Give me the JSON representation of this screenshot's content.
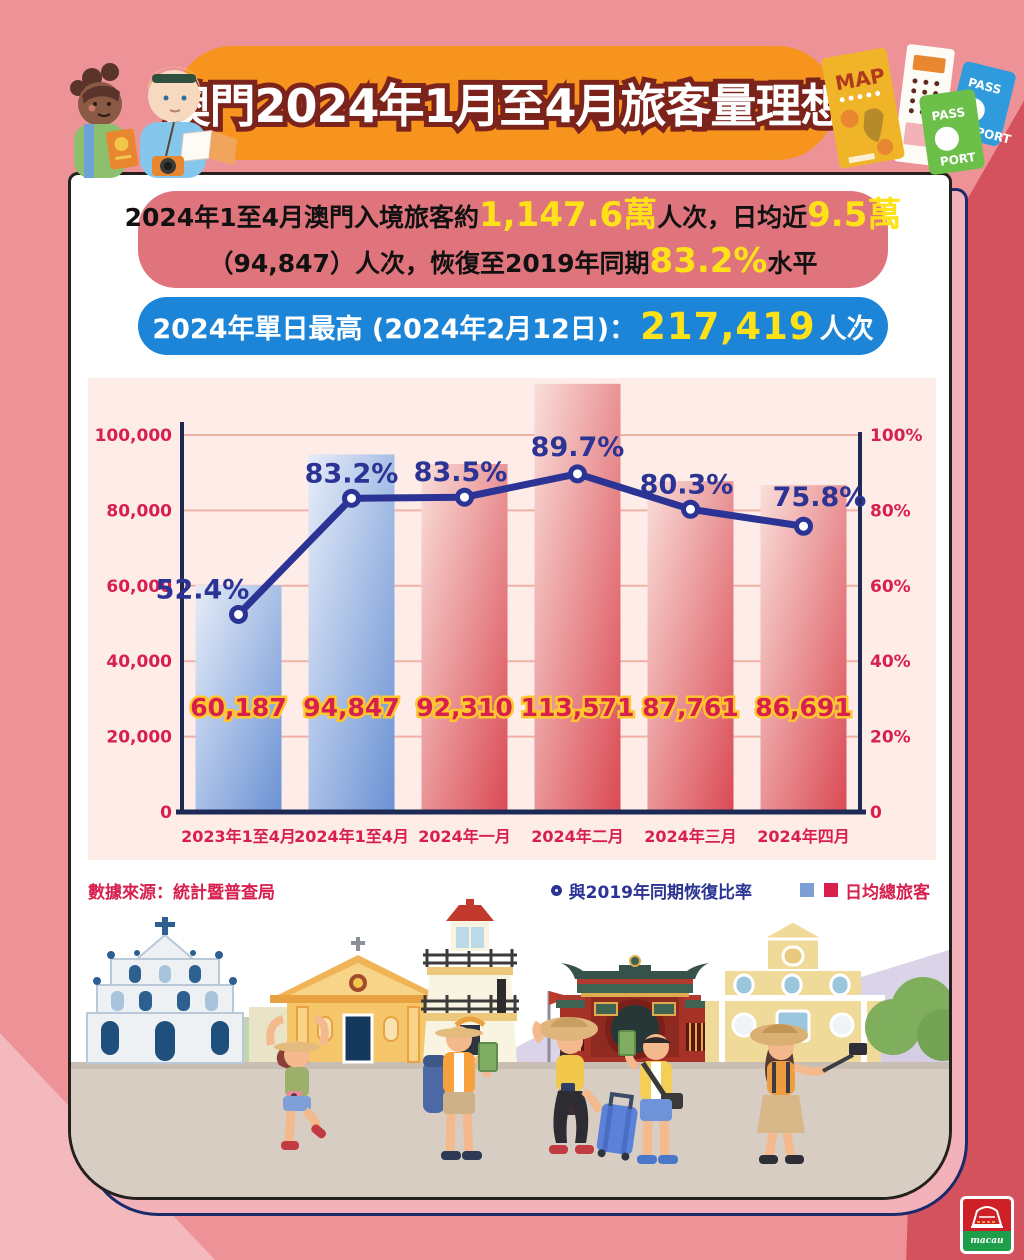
{
  "title_banner": {
    "text": "澳門2024年1月至4月旅客量理想",
    "bg": "#f7941e"
  },
  "summary_box": {
    "line1": [
      {
        "t": "2024年1至4月澳門入境旅客約",
        "hl": false
      },
      {
        "t": "1,147.6萬",
        "hl": true
      },
      {
        "t": "人次，日均近",
        "hl": false
      },
      {
        "t": "9.5萬",
        "hl": true
      }
    ],
    "line2": [
      {
        "t": "（94,847）人次，恢復至2019年同期",
        "hl": false
      },
      {
        "t": "83.2%",
        "hl": true
      },
      {
        "t": "水平",
        "hl": false
      }
    ]
  },
  "peak_box": {
    "prefix": "2024年單日最高 (2024年2月12日)：",
    "value": "217,419",
    "suffix": "人次"
  },
  "chart_data": {
    "type": "bar+line combo",
    "categories": [
      "2023年1至4月",
      "2024年1至4月",
      "2024年一月",
      "2024年二月",
      "2024年三月",
      "2024年四月"
    ],
    "series": [
      {
        "name": "日均總旅客",
        "type": "bar",
        "values": [
          60187,
          94847,
          92310,
          113571,
          87761,
          86691
        ],
        "labels": [
          "60,187",
          "94,847",
          "92,310",
          "113,571",
          "87,761",
          "86,691"
        ],
        "bar_styles": [
          "blue",
          "blue",
          "red",
          "red",
          "red",
          "red"
        ]
      },
      {
        "name": "與2019年同期恢復比率",
        "type": "line",
        "values": [
          52.4,
          83.2,
          83.5,
          89.7,
          80.3,
          75.8
        ],
        "labels": [
          "52.4%",
          "83.2%",
          "83.5%",
          "89.7%",
          "80.3%",
          "75.8%"
        ]
      }
    ],
    "left_axis": {
      "ticks": [
        "100,000",
        "80,000",
        "60,000",
        "40,000",
        "20,000",
        "0"
      ],
      "max": 100000,
      "min": 0
    },
    "right_axis": {
      "ticks": [
        "100%",
        "80%",
        "60%",
        "40%",
        "20%",
        "0"
      ],
      "max": 100,
      "min": 0
    },
    "grid": true,
    "legend": {
      "line_label": "與2019年同期恢復比率",
      "bar_label": "日均總旅客",
      "position": "bottom-right"
    },
    "source": "數據來源：統計暨普查局",
    "colors": {
      "bar_blue": [
        "#e6ecf8",
        "#6a92d4"
      ],
      "bar_red": [
        "#f9ded9",
        "#da4a54"
      ],
      "line": "#2b3494",
      "axis": "#1d2a55",
      "grid": "#f0b2a7",
      "tick_text": "#d7204e",
      "bar_label_fill": "#d7204e",
      "bar_label_stroke": "#ffc62e"
    }
  },
  "decor": {
    "map_label": "MAP",
    "passport_top": "PASS",
    "passport_bottom": "PORT"
  },
  "footer_logo": {
    "text": "macau"
  }
}
